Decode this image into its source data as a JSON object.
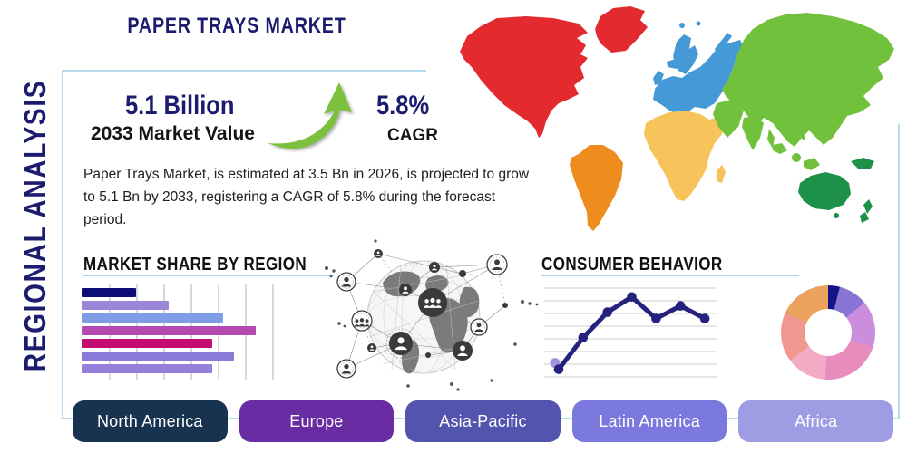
{
  "page_title": "PAPER TRAYS MARKET",
  "side_label": "REGIONAL ANALYSIS",
  "stats": {
    "market_value": "5.1 Billion",
    "market_value_caption": "2033 Market Value",
    "cagr_value": "5.8%",
    "cagr_caption": "CAGR",
    "growth_icon": "up-trend-arrow-icon",
    "growth_icon_color": "#7cc13d"
  },
  "description": "Paper Trays Market, is estimated at 3.5 Bn in 2026, is projected to grow to 5.1 Bn by 2033, registering a CAGR of 5.8% during the forecast period.",
  "colors": {
    "heading_navy": "#1c1c6e",
    "text_black": "#141414",
    "frame_border": "#b5dcec",
    "section_underline": "#a9d6e8",
    "bar_gridline": "#d7d7e2",
    "line_gridline": "#cfcfd6"
  },
  "map": {
    "icon": "world-map",
    "colors": {
      "north_america": "#e22a2f",
      "greenland": "#e22a2f",
      "south_america": "#ee8c1e",
      "europe": "#4599d7",
      "africa": "#f6c45a",
      "asia": "#72c13c",
      "oceania": "#1e9148"
    }
  },
  "globe_graphic_icon": "global-network-globe-icon",
  "sections": {
    "market_share": {
      "title": "MARKET SHARE BY REGION"
    },
    "consumer": {
      "title": "CONSUMER BEHAVIOR"
    }
  },
  "chart_data": [
    {
      "type": "bar",
      "title": "MARKET SHARE BY REGION",
      "orientation": "horizontal",
      "values": [
        2.0,
        3.2,
        5.2,
        6.4,
        4.8,
        5.6,
        4.8
      ],
      "xlim": [
        0,
        7
      ],
      "grid": true,
      "gridlines": 7,
      "bar_colors": [
        "#0d0d77",
        "#9a85d6",
        "#7f9de4",
        "#b44ab0",
        "#c40b72",
        "#8a7ad7",
        "#9480d8"
      ],
      "categories": [],
      "legend": "none"
    },
    {
      "type": "line",
      "title": "CONSUMER BEHAVIOR",
      "values": [
        0.6,
        3.1,
        5.1,
        6.3,
        4.6,
        5.6,
        4.6
      ],
      "ylim": [
        0,
        7
      ],
      "grid": true,
      "gridlines": 8,
      "line_color": "#23237e",
      "marker_color": "#23237e",
      "first_marker_halo_color": "#a393dd",
      "categories": [],
      "legend": "none"
    },
    {
      "type": "pie",
      "donut": true,
      "slices": [
        {
          "percent": 4,
          "color": "#141487"
        },
        {
          "percent": 10,
          "color": "#8874d4"
        },
        {
          "percent": 16,
          "color": "#cb8edc"
        },
        {
          "percent": 21,
          "color": "#e88bbd"
        },
        {
          "percent": 14,
          "color": "#f3aac4"
        },
        {
          "percent": 17,
          "color": "#f0978f"
        },
        {
          "percent": 18,
          "color": "#eba25c"
        }
      ],
      "legend": "none"
    }
  ],
  "region_buttons": [
    {
      "label": "North America",
      "color": "#17334f"
    },
    {
      "label": "Europe",
      "color": "#6a2ca2"
    },
    {
      "label": "Asia-Pacific",
      "color": "#5254ad"
    },
    {
      "label": "Latin America",
      "color": "#7b79de"
    },
    {
      "label": "Africa",
      "color": "#9e9de3"
    }
  ]
}
